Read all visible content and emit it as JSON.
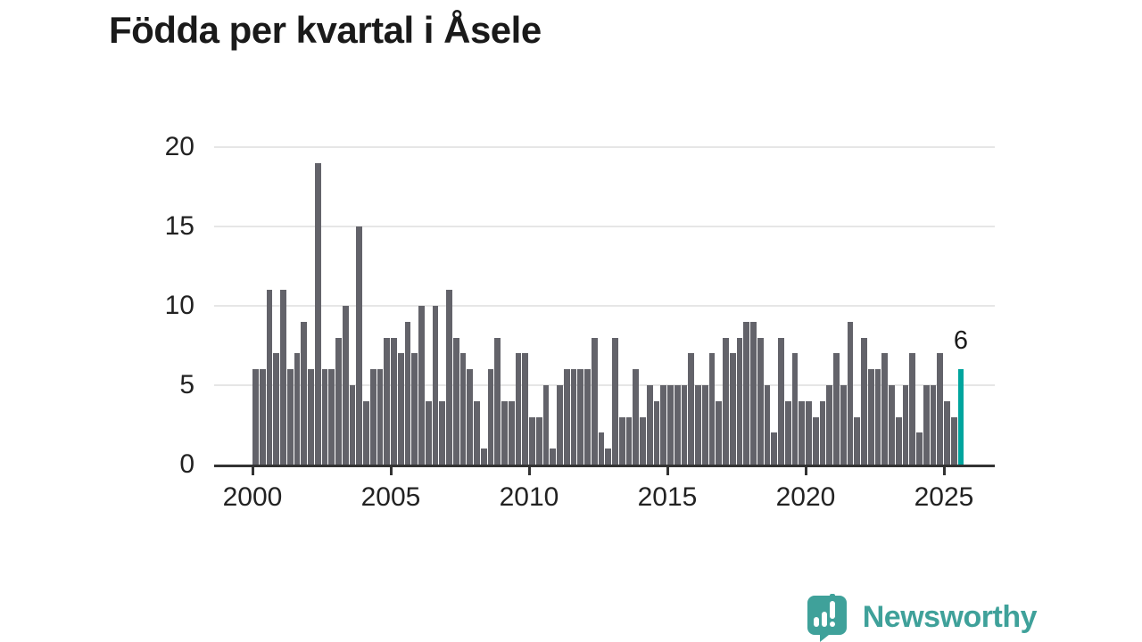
{
  "header": {
    "title": "Födda per kvartal i Åsele"
  },
  "chart_data": {
    "type": "bar",
    "title": "Födda per kvartal i Åsele",
    "xlabel": "",
    "ylabel": "",
    "x_unit": "kvartal (quarter)",
    "start_quarter": "2000 Q1",
    "end_quarter": "2025 Q3",
    "x_tick_labels": [
      "2000",
      "2005",
      "2010",
      "2015",
      "2020",
      "2025"
    ],
    "y_ticks": [
      0,
      5,
      10,
      15,
      20
    ],
    "ylim": [
      0,
      20
    ],
    "grid": "horizontal",
    "legend": "none",
    "bar_color": "#63636a",
    "highlight_color": "#00a59e",
    "values_by_year": {
      "2000": [
        6,
        6,
        11,
        7
      ],
      "2001": [
        11,
        6,
        7,
        9
      ],
      "2002": [
        6,
        19,
        6,
        6
      ],
      "2003": [
        8,
        10,
        5,
        15
      ],
      "2004": [
        4,
        6,
        6,
        8
      ],
      "2005": [
        8,
        7,
        9,
        7
      ],
      "2006": [
        10,
        4,
        10,
        4
      ],
      "2007": [
        11,
        8,
        7,
        6
      ],
      "2008": [
        4,
        1,
        6,
        8
      ],
      "2009": [
        4,
        4,
        7,
        7
      ],
      "2010": [
        3,
        3,
        5,
        1
      ],
      "2011": [
        5,
        6,
        6,
        6
      ],
      "2012": [
        6,
        8,
        2,
        1
      ],
      "2013": [
        8,
        3,
        3,
        6
      ],
      "2014": [
        3,
        5,
        4,
        5
      ],
      "2015": [
        5,
        5,
        5,
        7
      ],
      "2016": [
        5,
        5,
        7,
        4
      ],
      "2017": [
        8,
        7,
        8,
        9
      ],
      "2018": [
        9,
        8,
        5,
        2
      ],
      "2019": [
        8,
        4,
        7,
        4
      ],
      "2020": [
        4,
        3,
        4,
        5
      ],
      "2021": [
        7,
        5,
        9,
        3
      ],
      "2022": [
        8,
        6,
        6,
        7
      ],
      "2023": [
        5,
        3,
        5,
        7
      ],
      "2024": [
        2,
        5,
        5,
        7
      ],
      "2025": [
        4,
        3,
        6
      ]
    },
    "highlighted_point": {
      "quarter": "2025 Q3",
      "value": 6
    },
    "last_value_label": "6"
  },
  "footer": {
    "brand": "Newsworthy",
    "brand_color": "#3fa19a"
  }
}
